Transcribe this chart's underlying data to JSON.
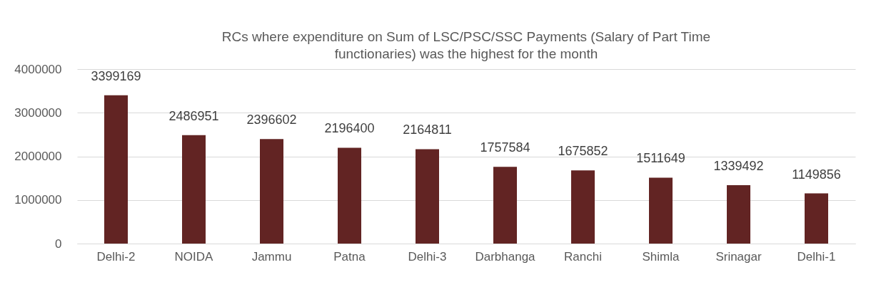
{
  "chart_data": {
    "type": "bar",
    "title": "RCs where expenditure on Sum of LSC/PSC/SSC  Payments (Salary of Part Time functionaries) was the highest for the month",
    "categories": [
      "Delhi-2",
      "NOIDA",
      "Jammu",
      "Patna",
      "Delhi-3",
      "Darbhanga",
      "Ranchi",
      "Shimla",
      "Srinagar",
      "Delhi-1"
    ],
    "values": [
      3399169,
      2486951,
      2396602,
      2196400,
      2164811,
      1757584,
      1675852,
      1511649,
      1339492,
      1149856
    ],
    "color": "#622423",
    "ylim": [
      0,
      4000000
    ],
    "yticks": [
      0,
      1000000,
      2000000,
      3000000,
      4000000
    ],
    "grid": "y",
    "data_labels": true
  }
}
